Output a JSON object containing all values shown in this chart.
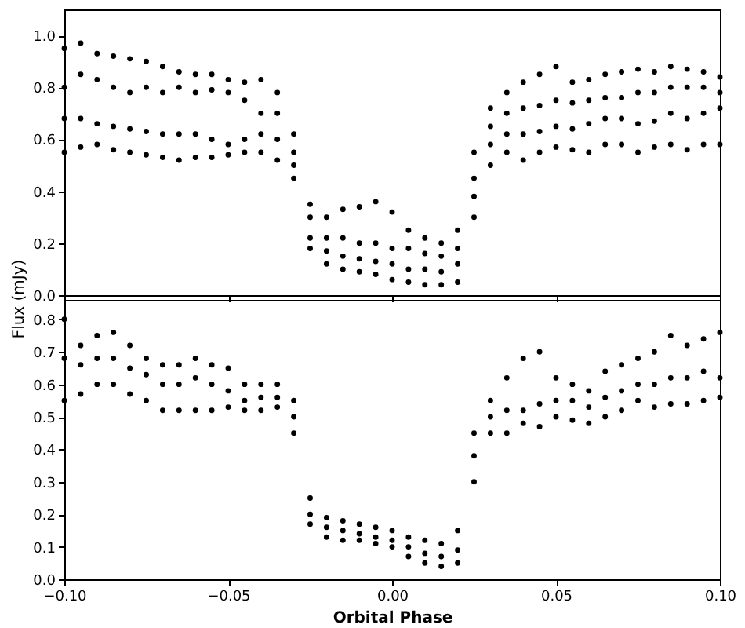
{
  "chart_data": [
    {
      "type": "scatter",
      "ylabel": "Flux (mJy)",
      "marker": "circle",
      "tick_labels": "y",
      "xlim": [
        -0.1,
        0.1
      ],
      "xticks": [
        {
          "value": -0.1,
          "label": null
        },
        {
          "value": -0.05,
          "label": null
        },
        {
          "value": 0,
          "label": null
        },
        {
          "value": 0.05,
          "label": null
        },
        {
          "value": 0.1,
          "label": null
        }
      ],
      "ylim": [
        0,
        1.1
      ],
      "yticks": [
        {
          "value": 0,
          "label": "0.0"
        },
        {
          "value": 0.2,
          "label": "0.2"
        },
        {
          "value": 0.4,
          "label": "0.4"
        },
        {
          "value": 0.6,
          "label": "0.6"
        },
        {
          "value": 0.8,
          "label": "0.8"
        },
        {
          "value": 1,
          "label": "1.0"
        }
      ],
      "x": [
        -0.1,
        -0.095,
        -0.09,
        -0.085,
        -0.08,
        -0.075,
        -0.07,
        -0.065,
        -0.06,
        -0.055,
        -0.05,
        -0.045,
        -0.04,
        -0.035,
        -0.03,
        -0.025,
        -0.02,
        -0.015,
        -0.01,
        -0.005,
        0,
        0.005,
        0.01,
        0.015,
        0.02,
        0.025,
        0.03,
        0.035,
        0.04,
        0.045,
        0.05,
        0.055,
        0.06,
        0.065,
        0.07,
        0.075,
        0.08,
        0.085,
        0.09,
        0.095,
        0.1
      ],
      "series": [
        {
          "color": "#000000",
          "values": [
            0.95,
            0.97,
            0.93,
            0.92,
            0.91,
            0.9,
            0.88,
            0.86,
            0.85,
            0.85,
            0.83,
            0.82,
            0.83,
            0.78,
            0.62,
            0.35,
            0.3,
            0.33,
            0.34,
            0.36,
            0.32,
            0.25,
            0.22,
            0.2,
            0.25,
            0.55,
            0.72,
            0.78,
            0.82,
            0.85,
            0.88,
            0.82,
            0.83,
            0.85,
            0.86,
            0.87,
            0.86,
            0.88,
            0.87,
            0.86,
            0.84
          ]
        },
        {
          "color": "#000000",
          "values": [
            0.8,
            0.85,
            0.83,
            0.8,
            0.78,
            0.8,
            0.78,
            0.8,
            0.78,
            0.79,
            0.78,
            0.75,
            0.7,
            0.7,
            0.55,
            0.3,
            0.22,
            0.22,
            0.2,
            0.2,
            0.18,
            0.18,
            0.16,
            0.15,
            0.18,
            0.45,
            0.65,
            0.7,
            0.72,
            0.73,
            0.75,
            0.74,
            0.75,
            0.76,
            0.76,
            0.78,
            0.78,
            0.8,
            0.8,
            0.8,
            0.78
          ]
        },
        {
          "color": "#000000",
          "values": [
            0.68,
            0.68,
            0.66,
            0.65,
            0.64,
            0.63,
            0.62,
            0.62,
            0.62,
            0.6,
            0.58,
            0.6,
            0.62,
            0.6,
            0.5,
            0.22,
            0.17,
            0.15,
            0.14,
            0.13,
            0.12,
            0.1,
            0.1,
            0.09,
            0.12,
            0.38,
            0.58,
            0.62,
            0.62,
            0.63,
            0.65,
            0.64,
            0.66,
            0.68,
            0.68,
            0.66,
            0.67,
            0.7,
            0.68,
            0.7,
            0.72
          ]
        },
        {
          "color": "#000000",
          "values": [
            0.55,
            0.57,
            0.58,
            0.56,
            0.55,
            0.54,
            0.53,
            0.52,
            0.53,
            0.53,
            0.54,
            0.55,
            0.55,
            0.52,
            0.45,
            0.18,
            0.12,
            0.1,
            0.09,
            0.08,
            0.06,
            0.05,
            0.04,
            0.04,
            0.05,
            0.3,
            0.5,
            0.55,
            0.52,
            0.55,
            0.57,
            0.56,
            0.55,
            0.58,
            0.58,
            0.55,
            0.57,
            0.58,
            0.56,
            0.58,
            0.58
          ]
        }
      ]
    },
    {
      "type": "scatter",
      "xlabel": "Orbital Phase",
      "marker": "circle",
      "xlim": [
        -0.1,
        0.1
      ],
      "xticks": [
        {
          "value": -0.1,
          "label": "−0.10"
        },
        {
          "value": -0.05,
          "label": "−0.05"
        },
        {
          "value": 0,
          "label": "0.00"
        },
        {
          "value": 0.05,
          "label": "0.05"
        },
        {
          "value": 0.1,
          "label": "0.10"
        }
      ],
      "ylim": [
        0,
        0.86
      ],
      "yticks": [
        {
          "value": 0,
          "label": "0.0"
        },
        {
          "value": 0.1,
          "label": "0.1"
        },
        {
          "value": 0.2,
          "label": "0.2"
        },
        {
          "value": 0.3,
          "label": "0.3"
        },
        {
          "value": 0.4,
          "label": "0.4"
        },
        {
          "value": 0.5,
          "label": "0.5"
        },
        {
          "value": 0.6,
          "label": "0.6"
        },
        {
          "value": 0.7,
          "label": "0.7"
        },
        {
          "value": 0.8,
          "label": "0.8"
        }
      ],
      "x": [
        -0.1,
        -0.095,
        -0.09,
        -0.085,
        -0.08,
        -0.075,
        -0.07,
        -0.065,
        -0.06,
        -0.055,
        -0.05,
        -0.045,
        -0.04,
        -0.035,
        -0.03,
        -0.025,
        -0.02,
        -0.015,
        -0.01,
        -0.005,
        0,
        0.005,
        0.01,
        0.015,
        0.02,
        0.025,
        0.03,
        0.035,
        0.04,
        0.045,
        0.05,
        0.055,
        0.06,
        0.065,
        0.07,
        0.075,
        0.08,
        0.085,
        0.09,
        0.095,
        0.1
      ],
      "series": [
        {
          "color": "#000000",
          "values": [
            0.8,
            0.72,
            0.75,
            0.76,
            0.72,
            0.68,
            0.66,
            0.66,
            0.68,
            0.66,
            0.65,
            0.6,
            0.6,
            0.6,
            0.55,
            0.25,
            0.19,
            0.18,
            0.17,
            0.16,
            0.15,
            0.13,
            0.12,
            0.11,
            0.15,
            0.45,
            0.55,
            0.62,
            0.68,
            0.7,
            0.62,
            0.6,
            0.58,
            0.64,
            0.66,
            0.68,
            0.7,
            0.75,
            0.72,
            0.74,
            0.76
          ]
        },
        {
          "color": "#000000",
          "values": [
            0.68,
            0.66,
            0.68,
            0.68,
            0.65,
            0.63,
            0.6,
            0.6,
            0.62,
            0.6,
            0.58,
            0.55,
            0.56,
            0.56,
            0.5,
            0.2,
            0.16,
            0.15,
            0.14,
            0.13,
            0.12,
            0.1,
            0.08,
            0.07,
            0.09,
            0.38,
            0.5,
            0.52,
            0.52,
            0.54,
            0.55,
            0.55,
            0.53,
            0.56,
            0.58,
            0.6,
            0.6,
            0.62,
            0.62,
            0.64,
            0.62
          ]
        },
        {
          "color": "#000000",
          "values": [
            0.55,
            0.57,
            0.6,
            0.6,
            0.57,
            0.55,
            0.52,
            0.52,
            0.52,
            0.52,
            0.53,
            0.52,
            0.52,
            0.53,
            0.45,
            0.17,
            0.13,
            0.12,
            0.12,
            0.11,
            0.1,
            0.07,
            0.05,
            0.04,
            0.05,
            0.3,
            0.45,
            0.45,
            0.48,
            0.47,
            0.5,
            0.49,
            0.48,
            0.5,
            0.52,
            0.55,
            0.53,
            0.54,
            0.54,
            0.55,
            0.56
          ]
        }
      ]
    }
  ]
}
